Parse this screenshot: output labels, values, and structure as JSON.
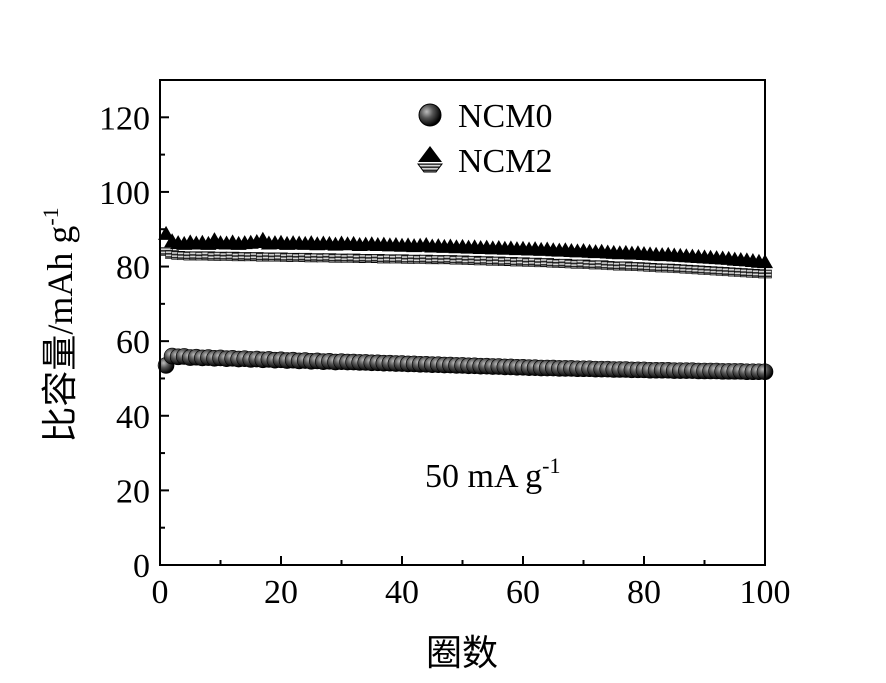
{
  "chart_data": {
    "type": "scatter",
    "xlabel": "圈数",
    "ylabel": "比容量/mAh g-1",
    "ylabel_main": "比容量/mAh g",
    "ylabel_sup": "-1",
    "xlim": [
      0,
      100
    ],
    "ylim": [
      0,
      130
    ],
    "xticks": [
      0,
      20,
      40,
      60,
      80,
      100
    ],
    "yticks": [
      0,
      20,
      40,
      60,
      80,
      100,
      120
    ],
    "grid": false,
    "legend_position": "top-center",
    "annotation": {
      "text": "50 mA g-1",
      "main": "50 mA g",
      "sup": "-1"
    },
    "series": [
      {
        "name": "NCM0",
        "marker": "circle",
        "color": "#000000",
        "x": [
          1,
          2,
          3,
          4,
          5,
          6,
          7,
          8,
          9,
          10,
          11,
          12,
          13,
          14,
          15,
          16,
          17,
          18,
          19,
          20,
          21,
          22,
          23,
          24,
          25,
          26,
          27,
          28,
          29,
          30,
          31,
          32,
          33,
          34,
          35,
          36,
          37,
          38,
          39,
          40,
          41,
          42,
          43,
          44,
          45,
          46,
          47,
          48,
          49,
          50,
          51,
          52,
          53,
          54,
          55,
          56,
          57,
          58,
          59,
          60,
          61,
          62,
          63,
          64,
          65,
          66,
          67,
          68,
          69,
          70,
          71,
          72,
          73,
          74,
          75,
          76,
          77,
          78,
          79,
          80,
          81,
          82,
          83,
          84,
          85,
          86,
          87,
          88,
          89,
          90,
          91,
          92,
          93,
          94,
          95,
          96,
          97,
          98,
          99,
          100
        ],
        "y": [
          53.5,
          56.0,
          55.8,
          55.9,
          55.6,
          55.7,
          55.5,
          55.6,
          55.4,
          55.5,
          55.3,
          55.4,
          55.2,
          55.3,
          55.1,
          55.2,
          55.0,
          55.1,
          54.9,
          55.0,
          54.8,
          54.9,
          54.7,
          54.8,
          54.6,
          54.7,
          54.5,
          54.6,
          54.4,
          54.5,
          54.4,
          54.4,
          54.3,
          54.3,
          54.2,
          54.2,
          54.1,
          54.1,
          54.0,
          54.0,
          53.9,
          53.9,
          53.8,
          53.8,
          53.7,
          53.7,
          53.6,
          53.6,
          53.5,
          53.5,
          53.4,
          53.4,
          53.3,
          53.3,
          53.2,
          53.2,
          53.1,
          53.1,
          53.0,
          53.0,
          52.9,
          52.9,
          52.8,
          52.8,
          52.8,
          52.7,
          52.7,
          52.7,
          52.6,
          52.6,
          52.6,
          52.5,
          52.5,
          52.5,
          52.4,
          52.4,
          52.4,
          52.3,
          52.3,
          52.3,
          52.2,
          52.2,
          52.2,
          52.2,
          52.1,
          52.1,
          52.1,
          52.1,
          52.0,
          52.0,
          52.0,
          52.0,
          51.9,
          51.9,
          51.9,
          51.9,
          51.8,
          51.8,
          51.8,
          51.8
        ]
      },
      {
        "name": "NCM2",
        "marker": "triangle",
        "color": "#000000",
        "x": [
          1,
          2,
          3,
          4,
          5,
          6,
          7,
          8,
          9,
          10,
          11,
          12,
          13,
          14,
          15,
          16,
          17,
          18,
          19,
          20,
          21,
          22,
          23,
          24,
          25,
          26,
          27,
          28,
          29,
          30,
          31,
          32,
          33,
          34,
          35,
          36,
          37,
          38,
          39,
          40,
          41,
          42,
          43,
          44,
          45,
          46,
          47,
          48,
          49,
          50,
          51,
          52,
          53,
          54,
          55,
          56,
          57,
          58,
          59,
          60,
          61,
          62,
          63,
          64,
          65,
          66,
          67,
          68,
          69,
          70,
          71,
          72,
          73,
          74,
          75,
          76,
          77,
          78,
          79,
          80,
          81,
          82,
          83,
          84,
          85,
          86,
          87,
          88,
          89,
          90,
          91,
          92,
          93,
          94,
          95,
          96,
          97,
          98,
          99,
          100
        ],
        "y": [
          88.5,
          86.5,
          86.0,
          85.8,
          86.2,
          85.9,
          86.1,
          85.8,
          86.8,
          86.0,
          85.9,
          86.2,
          85.8,
          86.0,
          86.1,
          86.3,
          86.9,
          85.9,
          86.0,
          86.1,
          85.8,
          86.0,
          85.9,
          85.8,
          86.0,
          85.7,
          85.9,
          85.8,
          85.6,
          85.9,
          85.7,
          85.8,
          85.5,
          85.6,
          85.7,
          85.5,
          85.6,
          85.4,
          85.5,
          85.3,
          85.4,
          85.2,
          85.3,
          85.5,
          85.1,
          85.2,
          85.0,
          85.1,
          84.9,
          85.0,
          84.8,
          84.9,
          84.7,
          84.8,
          84.6,
          84.7,
          84.5,
          84.6,
          84.4,
          84.5,
          84.3,
          84.4,
          84.2,
          84.3,
          84.1,
          84.0,
          84.1,
          83.9,
          83.8,
          83.9,
          83.7,
          83.6,
          83.7,
          83.5,
          83.4,
          83.3,
          83.4,
          83.2,
          83.3,
          83.1,
          83.0,
          82.9,
          82.8,
          82.9,
          82.7,
          82.6,
          82.5,
          82.4,
          82.3,
          82.2,
          82.1,
          82.0,
          81.9,
          81.8,
          81.6,
          81.5,
          81.4,
          81.2,
          81.0,
          80.9
        ],
        "y_lower": [
          84.0,
          83.2,
          83.0,
          82.9,
          82.8,
          82.9,
          82.8,
          82.9,
          82.7,
          82.8,
          82.7,
          82.8,
          82.6,
          82.7,
          82.6,
          82.7,
          82.5,
          82.6,
          82.5,
          82.6,
          82.4,
          82.5,
          82.4,
          82.5,
          82.3,
          82.4,
          82.3,
          82.4,
          82.2,
          82.3,
          82.2,
          82.3,
          82.1,
          82.2,
          82.1,
          82.2,
          82.0,
          82.1,
          82.0,
          82.1,
          81.9,
          82.0,
          81.9,
          82.0,
          81.8,
          81.9,
          81.8,
          81.9,
          81.7,
          81.8,
          81.6,
          81.7,
          81.5,
          81.6,
          81.4,
          81.5,
          81.3,
          81.4,
          81.2,
          81.3,
          81.1,
          81.2,
          81.0,
          81.1,
          80.9,
          80.8,
          80.9,
          80.7,
          80.6,
          80.7,
          80.5,
          80.4,
          80.5,
          80.3,
          80.2,
          80.1,
          80.2,
          80.0,
          80.0,
          79.9,
          79.8,
          79.7,
          79.6,
          79.6,
          79.5,
          79.4,
          79.3,
          79.2,
          79.1,
          79.0,
          78.9,
          78.8,
          78.7,
          78.6,
          78.5,
          78.4,
          78.3,
          78.2,
          78.1,
          78.0
        ]
      }
    ]
  }
}
